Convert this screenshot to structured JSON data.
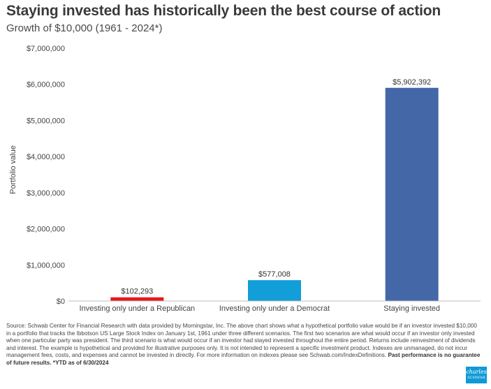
{
  "chart_data": {
    "type": "bar",
    "title": "Staying invested has historically been the best course of action",
    "subtitle": "Growth of $10,000 (1961 - 2024*)",
    "ylabel": "Portfolio value",
    "xlabel": "",
    "ylim": [
      0,
      7000000
    ],
    "y_ticks": [
      0,
      1000000,
      2000000,
      3000000,
      4000000,
      5000000,
      6000000,
      7000000
    ],
    "y_tick_labels": [
      "$0",
      "$1,000,000",
      "$2,000,000",
      "$3,000,000",
      "$4,000,000",
      "$5,000,000",
      "$6,000,000",
      "$7,000,000"
    ],
    "categories": [
      "Investing only under a Republican",
      "Investing only under a Democrat",
      "Staying invested"
    ],
    "values": [
      102293,
      577008,
      5902392
    ],
    "data_labels": [
      "$102,293",
      "$577,008",
      "$5,902,392"
    ],
    "colors": [
      "#e8171d",
      "#119ed9",
      "#4467a8"
    ],
    "grid": false,
    "legend": "none"
  },
  "footnote": {
    "text": "Source:  Schwab Center for Financial Research with data provided by Morningstar, Inc. The above chart shows what a hypothetical portfolio value would be if an investor invested $10,000 in a portfolio that tracks the Ibbotson US Large Stock Index on January 1st, 1961 under three different scenarios. The first two scenarios are what would occur if an investor only invested when one particular party was president. The third scenario is what would occur if an investor had stayed invested throughout the entire period. Returns include reinvestment of dividends and interest. The example is hypothetical and provided for illustrative purposes only. It is not intended to represent a specific investment product. Indexes are unmanaged, do not incur management fees, costs, and expenses and cannot be invested in directly. For more information on indexes please see Schwab.com/IndexDefinitions.",
    "bold": "Past performance is no guarantee of future results.",
    "tail": "*YTD as of 6/30/2024"
  },
  "logo": {
    "line1": "charles",
    "line2": "SCHWAB"
  }
}
